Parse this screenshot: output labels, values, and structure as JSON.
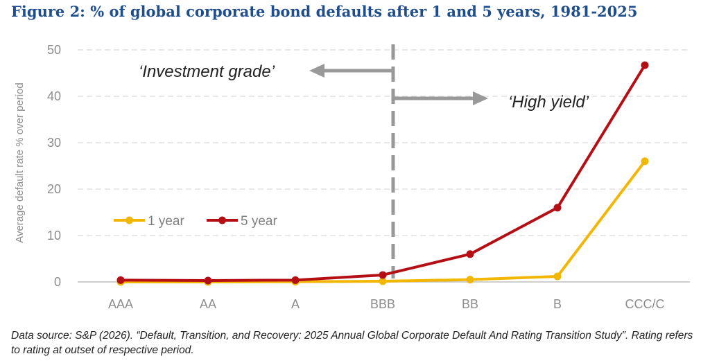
{
  "title": "Figure 2: % of global corporate bond defaults after 1 and 5 years, 1981-2025",
  "source_note": "Data source: S&P (2026). “Default, Transition, and Recovery: 2025 Annual Global Corporate Default And Rating Transition Study”. Rating refers to rating at outset of respective period.",
  "annotations": {
    "investment_grade": "‘Investment grade’",
    "high_yield": "‘High yield’"
  },
  "colors": {
    "one_year": "#f2b705",
    "five_year": "#b50f16",
    "grid": "#d9d9d9",
    "divider": "#999999",
    "title": "#1f4e8c"
  },
  "chart_data": {
    "type": "line",
    "categories": [
      "AAA",
      "AA",
      "A",
      "BBB",
      "BB",
      "B",
      "CCC/C"
    ],
    "series": [
      {
        "name": "1 year",
        "values": [
          0.0,
          0.0,
          0.05,
          0.15,
          0.5,
          1.2,
          26.0
        ]
      },
      {
        "name": "5 year",
        "values": [
          0.4,
          0.3,
          0.4,
          1.5,
          6.0,
          16.0,
          46.7
        ]
      }
    ],
    "ylabel": "Average default rate % over period",
    "xlabel": "",
    "ylim": [
      0,
      50
    ],
    "yticks": [
      0,
      10,
      20,
      30,
      40,
      50
    ],
    "grid": true,
    "legend": "lower-left",
    "divider_between": [
      "BBB",
      "BB"
    ]
  }
}
